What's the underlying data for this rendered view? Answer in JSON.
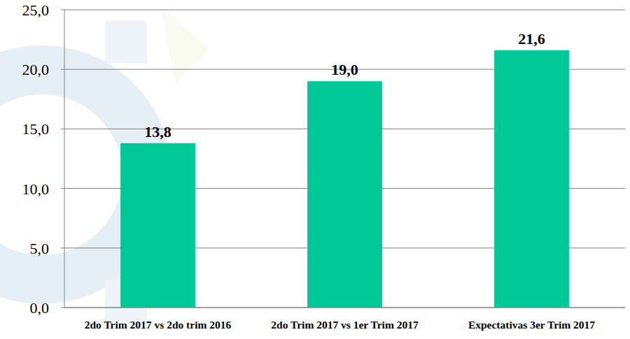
{
  "chart_data": {
    "type": "bar",
    "categories": [
      "2do Trim 2017 vs 2do trim 2016",
      "2do Trim 2017 vs 1er Trim 2017",
      "Expectativas 3er Trim 2017"
    ],
    "values": [
      13.8,
      19.0,
      21.6
    ],
    "value_labels": [
      "13,8",
      "19,0",
      "21,6"
    ],
    "color": "#00c896",
    "ylim": [
      0,
      25
    ],
    "yticks": [
      {
        "value": 0,
        "label": "0,0"
      },
      {
        "value": 5,
        "label": "5,0"
      },
      {
        "value": 10,
        "label": "10,0"
      },
      {
        "value": 15,
        "label": "15,0"
      },
      {
        "value": 20,
        "label": "20,0"
      },
      {
        "value": 25,
        "label": "25,0"
      }
    ],
    "grid": true,
    "data_labels": true
  }
}
